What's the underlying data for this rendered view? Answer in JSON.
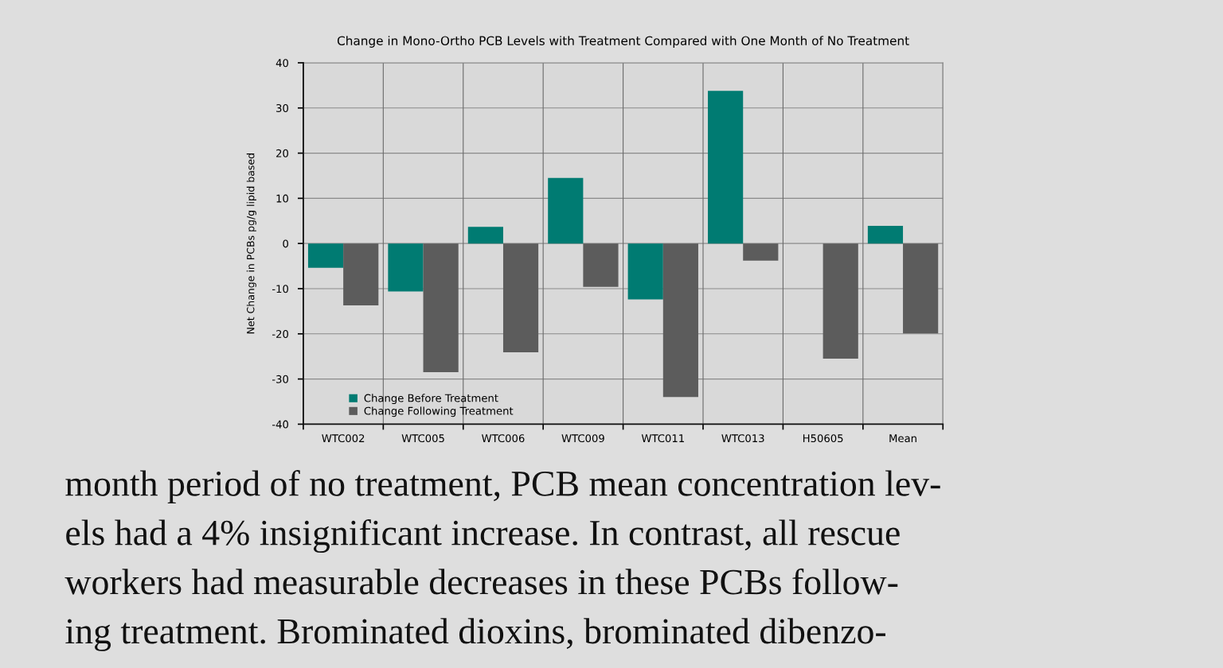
{
  "chart_data": {
    "type": "bar",
    "title": "Change in Mono-Ortho PCB Levels with Treatment Compared with One Month of No Treatment",
    "ylabel": "Net Change in PCBs pg/g lipid based",
    "categories": [
      "WTC002",
      "WTC005",
      "WTC006",
      "WTC009",
      "WTC011",
      "WTC013",
      "H50605",
      "Mean"
    ],
    "series": [
      {
        "name": "Change Before Treatment",
        "color": "#007b72",
        "values": [
          -5.4,
          -10.6,
          3.7,
          14.5,
          -12.4,
          33.8,
          null,
          3.9
        ]
      },
      {
        "name": "Change Following Treatment",
        "color": "#5c5c5c",
        "values": [
          -13.7,
          -28.5,
          -24.1,
          -9.6,
          -34.0,
          -3.8,
          -25.5,
          -19.9
        ]
      }
    ],
    "ylim": [
      -40,
      40
    ],
    "yticks": [
      -40,
      -30,
      -20,
      -10,
      0,
      10,
      20,
      30,
      40
    ],
    "grid": true,
    "legend": "bottom left",
    "annotations": [
      "month period of no treatment, PCB mean concentration lev-",
      "els had a 4% insignificant increase. In contrast, all rescue",
      "workers had measurable decreases in these PCBs follow-",
      "ing treatment. Brominated dioxins, brominated dibenzo-"
    ]
  }
}
